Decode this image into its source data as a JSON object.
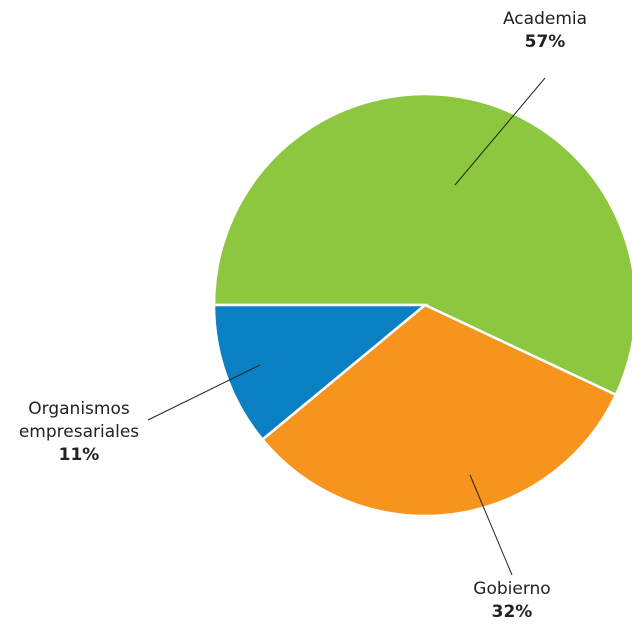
{
  "chart_data": {
    "type": "pie",
    "categories": [
      "Academia",
      "Gobierno",
      "Organismos\nempresariales"
    ],
    "values": [
      57,
      32,
      11
    ],
    "value_labels": [
      "57%",
      "32%",
      "11%"
    ],
    "colors": [
      "#8dc63f",
      "#f7941d",
      "#0a7fc2"
    ]
  }
}
